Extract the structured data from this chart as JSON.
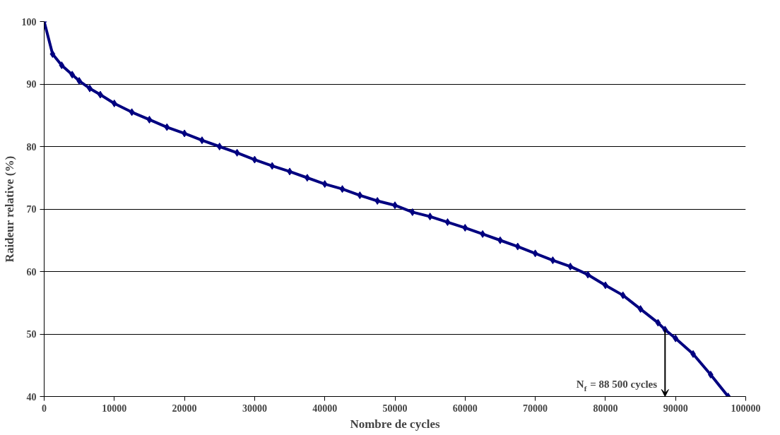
{
  "chart_data": {
    "type": "line",
    "xlabel": "Nombre de cycles",
    "ylabel": "Raideur relative (%)",
    "x": [
      0,
      1200,
      2500,
      4000,
      5000,
      6500,
      8000,
      10000,
      12500,
      15000,
      17500,
      20000,
      22500,
      25000,
      27500,
      30000,
      32500,
      35000,
      37500,
      40000,
      42500,
      45000,
      47500,
      50000,
      52500,
      55000,
      57500,
      60000,
      62500,
      65000,
      67500,
      70000,
      72500,
      75000,
      77500,
      80000,
      82500,
      85000,
      87500,
      88500,
      90000,
      92500,
      95000,
      97500
    ],
    "series": [
      {
        "color": "#000080",
        "values": [
          100,
          94.8,
          93,
          91.5,
          90.5,
          89.3,
          88.3,
          86.9,
          85.5,
          84.3,
          83.1,
          82.1,
          81,
          80,
          79,
          77.9,
          76.9,
          76,
          75,
          74,
          73.2,
          72.2,
          71.3,
          70.6,
          69.5,
          68.8,
          67.9,
          67,
          66,
          65,
          64,
          62.9,
          61.8,
          60.8,
          59.5,
          57.8,
          56.2,
          54,
          51.8,
          50.7,
          49.3,
          46.8,
          43.5,
          40
        ]
      }
    ],
    "xlim": [
      0,
      100000
    ],
    "xticks": [
      0,
      10000,
      20000,
      30000,
      40000,
      50000,
      60000,
      70000,
      80000,
      90000,
      100000
    ],
    "ylim": [
      40,
      100
    ],
    "yticks": [
      40,
      50,
      60,
      70,
      80,
      90,
      100
    ],
    "grid": "y",
    "marker": "diamond",
    "line_style": "solid",
    "annotations": [
      {
        "text": "N$_{f}$ = 88 500 cycles",
        "x": 88500,
        "y": 50.7
      }
    ]
  }
}
